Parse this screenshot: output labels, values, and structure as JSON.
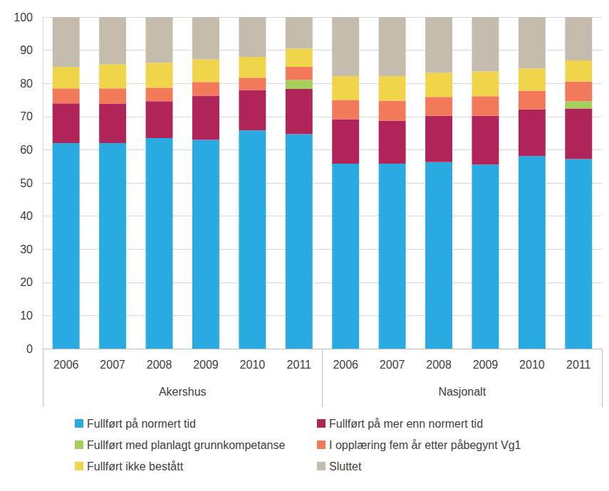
{
  "chart_data": {
    "type": "bar",
    "stacked": true,
    "grid": true,
    "legend": "bottom",
    "categories": [
      "2006",
      "2007",
      "2008",
      "2009",
      "2010",
      "2011",
      "2006",
      "2007",
      "2008",
      "2009",
      "2010",
      "2011"
    ],
    "category_groups": [
      "Akershus",
      "Akershus",
      "Akershus",
      "Akershus",
      "Akershus",
      "Akershus",
      "Nasjonalt",
      "Nasjonalt",
      "Nasjonalt",
      "Nasjonalt",
      "Nasjonalt",
      "Nasjonalt"
    ],
    "ylim": [
      0,
      100
    ],
    "yticks": [
      0,
      10,
      20,
      30,
      40,
      50,
      60,
      70,
      80,
      90,
      100
    ],
    "series": [
      {
        "name": "Fullført på normert tid",
        "color": "#29abe2",
        "values": [
          62,
          62,
          63.5,
          63,
          65.8,
          64.7,
          55.8,
          55.8,
          56.3,
          55.5,
          58.1,
          57.2
        ]
      },
      {
        "name": "Fullført på mer enn normert tid",
        "color": "#b0245a",
        "values": [
          12,
          11.8,
          11.1,
          13.3,
          12.2,
          13.6,
          13.4,
          13,
          13.9,
          14.7,
          14.1,
          15.2
        ]
      },
      {
        "name": "Fullført med planlagt grunnkompetanse",
        "color": "#a4cf5a",
        "values": [
          null,
          null,
          null,
          null,
          null,
          2.7,
          null,
          null,
          null,
          null,
          null,
          2.2
        ]
      },
      {
        "name": "I opplæring fem år etter påbegynt Vg1",
        "color": "#f27a5b",
        "values": [
          4.5,
          4.7,
          4.1,
          4.1,
          3.7,
          4,
          5.8,
          6,
          5.7,
          5.9,
          5.6,
          6
        ]
      },
      {
        "name": "Fullført ikke bestått",
        "color": "#f0d44a",
        "values": [
          6.5,
          7.3,
          7.5,
          6.9,
          6.3,
          5.5,
          7.2,
          7.4,
          7.3,
          7.5,
          6.7,
          6.3
        ]
      },
      {
        "name": "Sluttet",
        "color": "#c4bcad",
        "values": [
          15,
          14.2,
          13.8,
          12.7,
          12,
          9.5,
          17.8,
          17.8,
          16.8,
          16.4,
          15.5,
          13.1
        ]
      }
    ]
  }
}
